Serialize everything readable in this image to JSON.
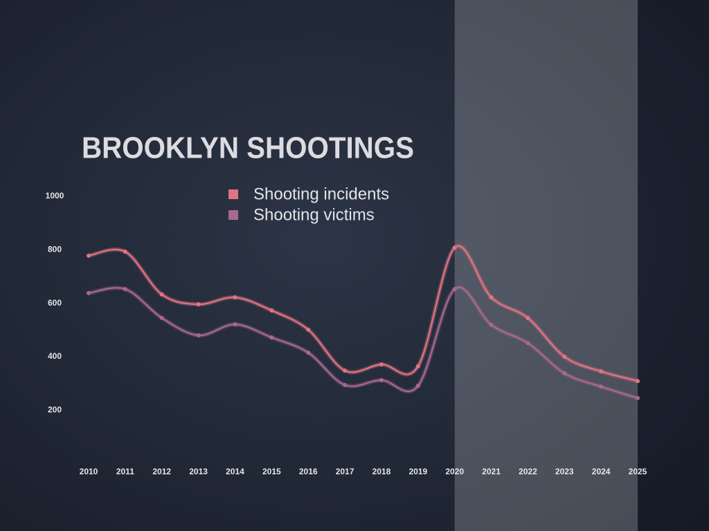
{
  "chart_data": {
    "type": "line",
    "title": "BROOKLYN SHOOTINGS",
    "categories": [
      "2010",
      "2011",
      "2012",
      "2013",
      "2014",
      "2015",
      "2016",
      "2017",
      "2018",
      "2019",
      "2020",
      "2021",
      "2022",
      "2023",
      "2024",
      "2025"
    ],
    "series": [
      {
        "name": "Shooting incidents",
        "color": "#e27483",
        "values": [
          778,
          793,
          633,
          596,
          622,
          573,
          501,
          348,
          371,
          364,
          808,
          622,
          545,
          400,
          345,
          309
        ]
      },
      {
        "name": "Shooting victims",
        "color": "#a9688f",
        "values": [
          638,
          653,
          545,
          480,
          521,
          472,
          415,
          294,
          312,
          291,
          653,
          519,
          451,
          338,
          288,
          245
        ]
      }
    ],
    "ylim": [
      0,
      1000
    ],
    "yticks": [
      200,
      400,
      600,
      800,
      1000
    ],
    "grid": false,
    "highlight": {
      "from": "2020",
      "to": "2025"
    }
  }
}
